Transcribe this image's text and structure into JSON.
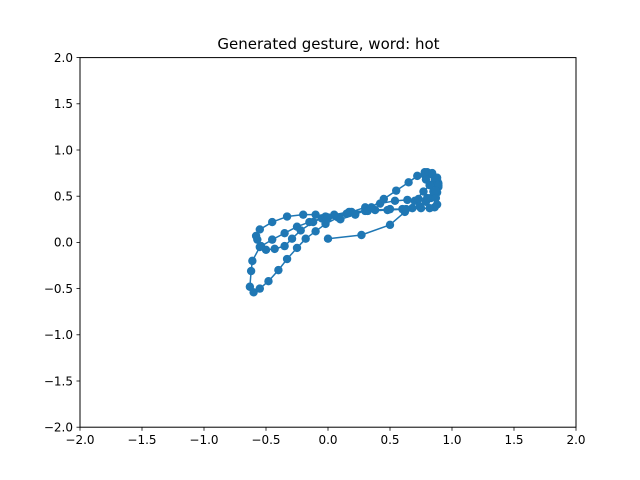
{
  "chart_data": {
    "type": "line",
    "title": "Generated gesture, word: hot",
    "xlabel": "",
    "ylabel": "",
    "xlim": [
      -2.0,
      2.0
    ],
    "ylim": [
      -2.0,
      2.0
    ],
    "xticks": [
      "−2.0",
      "−1.5",
      "−1.0",
      "−0.5",
      "0.0",
      "0.5",
      "1.0",
      "1.5",
      "2.0"
    ],
    "yticks": [
      "−2.0",
      "−1.5",
      "−1.0",
      "−0.5",
      "0.0",
      "0.5",
      "1.0",
      "1.5",
      "2.0"
    ],
    "xtick_values": [
      -2.0,
      -1.5,
      -1.0,
      -0.5,
      0.0,
      0.5,
      1.0,
      1.5,
      2.0
    ],
    "ytick_values": [
      -2.0,
      -1.5,
      -1.0,
      -0.5,
      0.0,
      0.5,
      1.0,
      1.5,
      2.0
    ],
    "grid": false,
    "legend": false,
    "marker": "circle",
    "color": "#1f77b4",
    "series": [
      {
        "x": [
          0.0,
          0.27,
          0.5,
          0.62,
          0.7,
          0.77,
          0.82,
          0.86,
          0.88,
          0.89,
          0.88,
          0.86,
          0.83,
          0.79,
          0.74,
          0.68,
          0.6,
          0.5,
          0.38,
          0.3,
          0.17,
          0.05,
          -0.05,
          -0.15,
          -0.25,
          -0.35,
          -0.45,
          -0.55,
          -0.61,
          -0.62,
          -0.63,
          -0.6,
          -0.55,
          -0.48,
          -0.4,
          -0.33,
          -0.25,
          -0.18,
          -0.1,
          -0.02,
          0.08,
          0.19,
          0.3,
          0.42,
          0.54,
          0.64,
          0.73,
          0.8,
          0.85,
          0.88,
          0.89,
          0.88,
          0.86,
          0.83,
          0.8,
          0.78,
          0.79,
          0.82,
          0.85,
          0.87,
          0.88,
          0.86,
          0.82,
          0.75,
          0.63,
          0.48,
          0.32,
          0.15,
          -0.02,
          -0.12,
          -0.22,
          -0.29,
          -0.35,
          -0.43,
          -0.5,
          -0.54,
          -0.57,
          -0.58,
          -0.55,
          -0.45,
          -0.33,
          -0.2,
          -0.1,
          0.0,
          0.1,
          0.22,
          0.35,
          0.45,
          0.55,
          0.65,
          0.72,
          0.78,
          0.84,
          0.88,
          0.89,
          0.87
        ],
        "y": [
          0.04,
          0.08,
          0.19,
          0.33,
          0.45,
          0.55,
          0.62,
          0.66,
          0.67,
          0.64,
          0.59,
          0.53,
          0.48,
          0.44,
          0.39,
          0.37,
          0.36,
          0.36,
          0.35,
          0.34,
          0.33,
          0.3,
          0.26,
          0.22,
          0.17,
          0.1,
          0.03,
          -0.05,
          -0.2,
          -0.31,
          -0.48,
          -0.54,
          -0.5,
          -0.42,
          -0.3,
          -0.18,
          -0.06,
          0.04,
          0.12,
          0.2,
          0.27,
          0.33,
          0.38,
          0.42,
          0.45,
          0.46,
          0.47,
          0.48,
          0.5,
          0.54,
          0.6,
          0.66,
          0.7,
          0.74,
          0.76,
          0.73,
          0.68,
          0.62,
          0.55,
          0.48,
          0.41,
          0.38,
          0.37,
          0.37,
          0.36,
          0.35,
          0.34,
          0.31,
          0.28,
          0.22,
          0.13,
          0.04,
          -0.04,
          -0.07,
          -0.08,
          -0.04,
          0.03,
          0.07,
          0.14,
          0.22,
          0.28,
          0.3,
          0.3,
          0.27,
          0.25,
          0.3,
          0.38,
          0.47,
          0.56,
          0.65,
          0.72,
          0.76,
          0.75,
          0.7,
          0.62,
          0.56
        ]
      }
    ]
  }
}
